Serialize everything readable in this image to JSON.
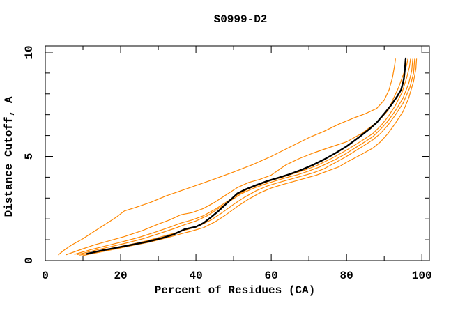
{
  "figure": {
    "background": "#ffffff",
    "chart_data": {
      "type": "line",
      "title": "S0999-D2",
      "xlabel": "Percent of Residues (CA)",
      "ylabel": "Distance Cutoff, A",
      "xlim": [
        0,
        102
      ],
      "ylim": [
        0,
        10.3
      ],
      "x_major_ticks": [
        0,
        20,
        40,
        60,
        80,
        100
      ],
      "x_minor_ticks": [
        10,
        30,
        50,
        70,
        90
      ],
      "y_major_ticks": [
        0,
        5,
        10
      ],
      "y_minor_ticks": [
        1,
        2,
        3,
        4,
        6,
        7,
        8,
        9
      ],
      "grid": false,
      "legend": "none",
      "axis_color": "#000000",
      "box_on_all_sides": true,
      "ticks_inward": true,
      "colors": {
        "other_models": "#ff8700",
        "highlighted_model": "#000000"
      },
      "series": [
        {
          "name": "orange-model-outlier",
          "color": "#ff8700",
          "stroke_width": 1.2,
          "points": [
            [
              3.5,
              0.28
            ],
            [
              5,
              0.5
            ],
            [
              7,
              0.75
            ],
            [
              10,
              1.05
            ],
            [
              13,
              1.4
            ],
            [
              16,
              1.75
            ],
            [
              19,
              2.1
            ],
            [
              21,
              2.38
            ],
            [
              24,
              2.55
            ],
            [
              28,
              2.8
            ],
            [
              32,
              3.1
            ],
            [
              36,
              3.35
            ],
            [
              40,
              3.6
            ],
            [
              45,
              3.92
            ],
            [
              50,
              4.25
            ],
            [
              55,
              4.6
            ],
            [
              60,
              5.0
            ],
            [
              65,
              5.45
            ],
            [
              70,
              5.9
            ],
            [
              74,
              6.2
            ],
            [
              78,
              6.55
            ],
            [
              82,
              6.85
            ],
            [
              85,
              7.05
            ],
            [
              88,
              7.3
            ],
            [
              90,
              7.7
            ],
            [
              91.3,
              8.2
            ],
            [
              92.2,
              8.8
            ],
            [
              92.8,
              9.4
            ],
            [
              93,
              9.7
            ]
          ]
        },
        {
          "name": "orange-model-2",
          "color": "#ff8700",
          "stroke_width": 1.2,
          "points": [
            [
              5.6,
              0.28
            ],
            [
              9,
              0.5
            ],
            [
              13,
              0.75
            ],
            [
              17,
              0.95
            ],
            [
              21,
              1.15
            ],
            [
              26,
              1.45
            ],
            [
              30,
              1.75
            ],
            [
              33,
              1.95
            ],
            [
              36,
              2.2
            ],
            [
              39,
              2.3
            ],
            [
              42,
              2.5
            ],
            [
              45,
              2.8
            ],
            [
              48,
              3.15
            ],
            [
              51,
              3.5
            ],
            [
              54,
              3.75
            ],
            [
              57,
              3.9
            ],
            [
              60,
              4.1
            ],
            [
              64,
              4.6
            ],
            [
              67.5,
              4.9
            ],
            [
              71,
              5.15
            ],
            [
              75,
              5.4
            ],
            [
              80,
              5.7
            ],
            [
              84,
              6.1
            ],
            [
              87,
              6.5
            ],
            [
              89,
              6.8
            ],
            [
              91,
              7.2
            ],
            [
              92.5,
              7.8
            ],
            [
              93.8,
              8.3
            ],
            [
              95,
              8.9
            ],
            [
              96,
              9.4
            ],
            [
              96.3,
              9.7
            ]
          ]
        },
        {
          "name": "orange-model-3",
          "color": "#ff8700",
          "stroke_width": 1.2,
          "points": [
            [
              7.8,
              0.3
            ],
            [
              12,
              0.52
            ],
            [
              16,
              0.7
            ],
            [
              20,
              0.88
            ],
            [
              25,
              1.12
            ],
            [
              29,
              1.35
            ],
            [
              33,
              1.6
            ],
            [
              36,
              1.8
            ],
            [
              39,
              1.95
            ],
            [
              42,
              2.15
            ],
            [
              45,
              2.45
            ],
            [
              48,
              2.8
            ],
            [
              51,
              3.15
            ],
            [
              54,
              3.45
            ],
            [
              57,
              3.65
            ],
            [
              60,
              3.85
            ],
            [
              63,
              4.0
            ],
            [
              66,
              4.18
            ],
            [
              69,
              4.35
            ],
            [
              72,
              4.55
            ],
            [
              76,
              4.9
            ],
            [
              80,
              5.3
            ],
            [
              84,
              5.75
            ],
            [
              87,
              6.1
            ],
            [
              89,
              6.45
            ],
            [
              91,
              6.9
            ],
            [
              93,
              7.45
            ],
            [
              94.8,
              8.1
            ],
            [
              96,
              8.8
            ],
            [
              96.7,
              9.3
            ],
            [
              97,
              9.7
            ]
          ]
        },
        {
          "name": "orange-model-4",
          "color": "#ff8700",
          "stroke_width": 1.2,
          "points": [
            [
              8.4,
              0.28
            ],
            [
              13,
              0.48
            ],
            [
              17,
              0.65
            ],
            [
              21,
              0.82
            ],
            [
              26,
              1.05
            ],
            [
              30,
              1.28
            ],
            [
              34,
              1.52
            ],
            [
              37,
              1.72
            ],
            [
              40,
              1.9
            ],
            [
              43,
              2.15
            ],
            [
              46,
              2.5
            ],
            [
              49,
              2.85
            ],
            [
              52,
              3.2
            ],
            [
              55,
              3.45
            ],
            [
              58,
              3.65
            ],
            [
              61,
              3.82
            ],
            [
              64,
              3.98
            ],
            [
              67,
              4.12
            ],
            [
              70,
              4.3
            ],
            [
              73,
              4.5
            ],
            [
              77,
              4.85
            ],
            [
              80,
              5.15
            ],
            [
              84,
              5.6
            ],
            [
              87,
              5.95
            ],
            [
              89,
              6.3
            ],
            [
              91,
              6.7
            ],
            [
              93,
              7.2
            ],
            [
              95,
              7.8
            ],
            [
              96.5,
              8.5
            ],
            [
              97.3,
              9.1
            ],
            [
              97.6,
              9.7
            ]
          ]
        },
        {
          "name": "orange-model-5",
          "color": "#ff8700",
          "stroke_width": 1.2,
          "points": [
            [
              9.2,
              0.26
            ],
            [
              14,
              0.45
            ],
            [
              18,
              0.6
            ],
            [
              22,
              0.75
            ],
            [
              27,
              0.95
            ],
            [
              31,
              1.15
            ],
            [
              35,
              1.35
            ],
            [
              38,
              1.5
            ],
            [
              41,
              1.68
            ],
            [
              44,
              1.95
            ],
            [
              47,
              2.3
            ],
            [
              50,
              2.7
            ],
            [
              53,
              3.05
            ],
            [
              56,
              3.35
            ],
            [
              59,
              3.58
            ],
            [
              62,
              3.75
            ],
            [
              65,
              3.9
            ],
            [
              68,
              4.05
            ],
            [
              71,
              4.2
            ],
            [
              74,
              4.4
            ],
            [
              78,
              4.8
            ],
            [
              80,
              5.0
            ],
            [
              84,
              5.45
            ],
            [
              87,
              5.8
            ],
            [
              89,
              6.1
            ],
            [
              91,
              6.5
            ],
            [
              93,
              7.0
            ],
            [
              95,
              7.55
            ],
            [
              96.8,
              8.3
            ],
            [
              97.8,
              9.0
            ],
            [
              98.1,
              9.7
            ]
          ]
        },
        {
          "name": "orange-model-6",
          "color": "#ff8700",
          "stroke_width": 1.2,
          "points": [
            [
              10,
              0.24
            ],
            [
              15,
              0.42
            ],
            [
              19,
              0.57
            ],
            [
              23,
              0.72
            ],
            [
              28,
              0.9
            ],
            [
              32,
              1.08
            ],
            [
              36,
              1.28
            ],
            [
              39,
              1.42
            ],
            [
              42,
              1.58
            ],
            [
              45,
              1.85
            ],
            [
              48,
              2.2
            ],
            [
              51,
              2.6
            ],
            [
              54,
              2.95
            ],
            [
              57,
              3.25
            ],
            [
              60,
              3.48
            ],
            [
              63,
              3.65
            ],
            [
              66,
              3.8
            ],
            [
              69,
              3.95
            ],
            [
              72,
              4.1
            ],
            [
              75,
              4.3
            ],
            [
              78,
              4.5
            ],
            [
              80,
              4.72
            ],
            [
              84,
              5.1
            ],
            [
              87,
              5.4
            ],
            [
              89,
              5.7
            ],
            [
              91,
              6.1
            ],
            [
              93,
              6.6
            ],
            [
              95,
              7.15
            ],
            [
              96.5,
              7.8
            ],
            [
              97.8,
              8.6
            ],
            [
              98.4,
              9.2
            ],
            [
              98.6,
              9.7
            ]
          ]
        },
        {
          "name": "black-highlighted-model",
          "color": "#000000",
          "stroke_width": 2.4,
          "points": [
            [
              11,
              0.32
            ],
            [
              15,
              0.48
            ],
            [
              19,
              0.62
            ],
            [
              23,
              0.76
            ],
            [
              27,
              0.9
            ],
            [
              31,
              1.08
            ],
            [
              34,
              1.25
            ],
            [
              37,
              1.5
            ],
            [
              40,
              1.62
            ],
            [
              42,
              1.8
            ],
            [
              44,
              2.08
            ],
            [
              46,
              2.38
            ],
            [
              48,
              2.72
            ],
            [
              50,
              3.05
            ],
            [
              51,
              3.22
            ],
            [
              53,
              3.4
            ],
            [
              56,
              3.62
            ],
            [
              59,
              3.82
            ],
            [
              62,
              3.98
            ],
            [
              65,
              4.15
            ],
            [
              68,
              4.35
            ],
            [
              71,
              4.58
            ],
            [
              74,
              4.85
            ],
            [
              77,
              5.15
            ],
            [
              80,
              5.48
            ],
            [
              83,
              5.88
            ],
            [
              86,
              6.3
            ],
            [
              88,
              6.62
            ],
            [
              90,
              7.05
            ],
            [
              92,
              7.5
            ],
            [
              93.5,
              7.9
            ],
            [
              94.5,
              8.2
            ],
            [
              95.2,
              8.7
            ],
            [
              95.5,
              9.2
            ],
            [
              95.7,
              9.7
            ]
          ]
        }
      ]
    }
  }
}
